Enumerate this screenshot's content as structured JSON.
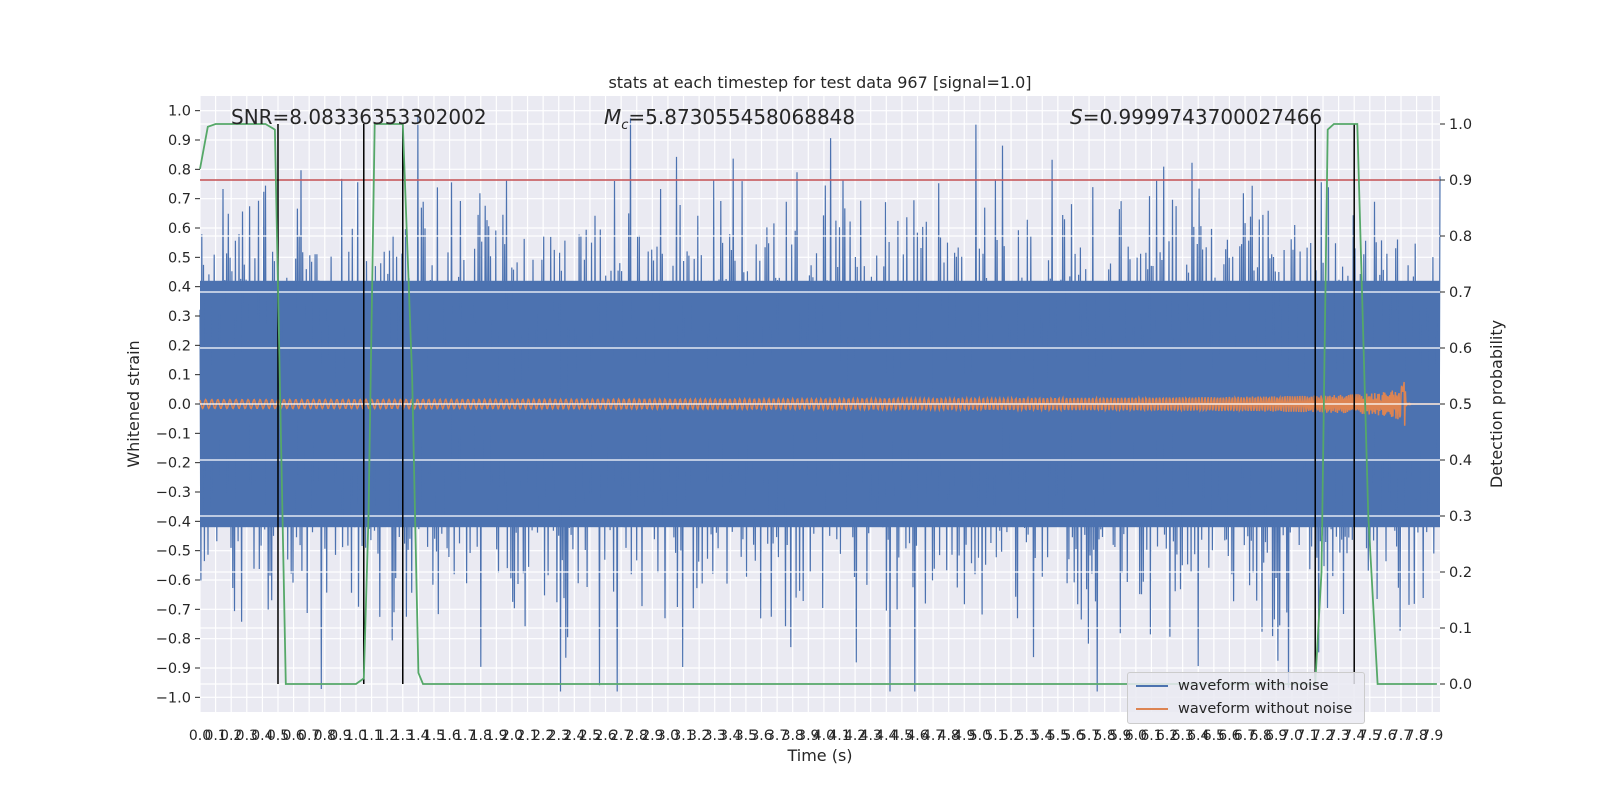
{
  "chart_data": {
    "type": "line",
    "title": "stats at each timestep for test data 967 [signal=1.0]",
    "xlabel": "Time (s)",
    "ylabel": "Whitened strain",
    "y2label": "Detection probability",
    "xlim": [
      0.0,
      7.95
    ],
    "ylim": [
      -1.05,
      1.05
    ],
    "y2lim": [
      -0.05,
      1.05
    ],
    "x_tick_labels": [
      "0.0",
      "0.1",
      "0.2",
      "0.3",
      "0.4",
      "0.5",
      "0.6",
      "0.7",
      "0.8",
      "0.9",
      "1.0",
      "1.1",
      "1.2",
      "1.3",
      "1.4",
      "1.5",
      "1.6",
      "1.7",
      "1.8",
      "1.9",
      "2.0",
      "2.1",
      "2.2",
      "2.3",
      "2.4",
      "2.5",
      "2.6",
      "2.7",
      "2.8",
      "2.9",
      "3.0",
      "3.1",
      "3.2",
      "3.3",
      "3.4",
      "3.5",
      "3.6",
      "3.7",
      "3.8",
      "3.9",
      "4.0",
      "4.1",
      "4.2",
      "4.3",
      "4.4",
      "4.5",
      "4.6",
      "4.7",
      "4.8",
      "4.9",
      "5.0",
      "5.1",
      "5.2",
      "5.3",
      "5.4",
      "5.5",
      "5.6",
      "5.7",
      "5.8",
      "5.9",
      "6.0",
      "6.1",
      "6.2",
      "6.3",
      "6.4",
      "6.5",
      "6.6",
      "6.7",
      "6.8",
      "6.9",
      "7.0",
      "7.1",
      "7.2",
      "7.3",
      "7.4",
      "7.5",
      "7.6",
      "7.7",
      "7.8",
      "7.9"
    ],
    "y_tick_labels": [
      "1.0",
      "0.9",
      "0.8",
      "0.7",
      "0.6",
      "0.5",
      "0.4",
      "0.3",
      "0.2",
      "0.1",
      "0.0",
      "−0.1",
      "−0.2",
      "−0.3",
      "−0.4",
      "−0.5",
      "−0.6",
      "−0.7",
      "−0.8",
      "−0.9",
      "−1.0"
    ],
    "y2_tick_labels": [
      "1.0",
      "0.9",
      "0.8",
      "0.7",
      "0.6",
      "0.5",
      "0.4",
      "0.3",
      "0.2",
      "0.1",
      "0.0"
    ],
    "annotations": {
      "snr": "SNR=8.08336353302002",
      "mc_symbol": "M",
      "mc_sub": "c",
      "mc_value": "=5.873055458068848",
      "s_symbol": "S",
      "s_value": "=0.9999743700027466"
    },
    "threshold": 0.9,
    "grid": true,
    "legend_position": "lower right",
    "series": [
      {
        "name": "waveform with noise",
        "color": "#4c72b0",
        "kind": "noise",
        "amplitude_typical": 0.45,
        "amplitude_peak": 0.98
      },
      {
        "name": "waveform without noise",
        "color": "#dd8452",
        "kind": "chirp",
        "start_amplitude": 0.015,
        "peak_amplitude": 0.17,
        "merger_time": 7.73,
        "end_time": 7.95
      }
    ],
    "detection_probability": {
      "color": "#55a868",
      "points": [
        [
          0.0,
          0.92
        ],
        [
          0.05,
          0.995
        ],
        [
          0.1,
          1.0
        ],
        [
          0.42,
          1.0
        ],
        [
          0.48,
          0.99
        ],
        [
          0.55,
          0.0
        ],
        [
          1.0,
          0.0
        ],
        [
          1.05,
          0.01
        ],
        [
          1.08,
          0.3
        ],
        [
          1.12,
          1.0
        ],
        [
          1.3,
          1.0
        ],
        [
          1.36,
          0.55
        ],
        [
          1.4,
          0.02
        ],
        [
          1.43,
          0.0
        ],
        [
          7.15,
          0.0
        ],
        [
          7.19,
          0.2
        ],
        [
          7.23,
          0.99
        ],
        [
          7.27,
          1.0
        ],
        [
          7.42,
          1.0
        ],
        [
          7.49,
          0.3
        ],
        [
          7.55,
          0.0
        ],
        [
          7.93,
          0.0
        ]
      ]
    },
    "detection_lines": [
      0.5,
      1.05,
      1.3,
      7.15,
      7.4
    ],
    "colors": {
      "background": "#eaeaf2",
      "grid": "#ffffff",
      "threshold": "#c44e52",
      "vlines": "#000000"
    }
  }
}
